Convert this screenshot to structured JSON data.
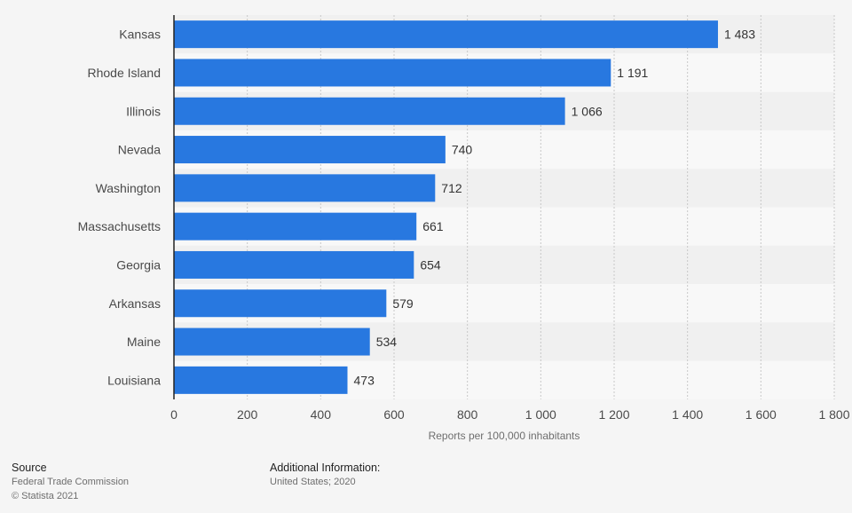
{
  "colors": {
    "bar": "#2878e0",
    "band_dark": "#f0f0f0",
    "band_light": "#f8f8f8",
    "grid": "#c8c8c8",
    "axis": "#222222",
    "label": "#4a4a4a",
    "value": "#333333"
  },
  "chart_data": {
    "type": "bar",
    "orientation": "horizontal",
    "categories": [
      "Kansas",
      "Rhode Island",
      "Illinois",
      "Nevada",
      "Washington",
      "Massachusetts",
      "Georgia",
      "Arkansas",
      "Maine",
      "Louisiana"
    ],
    "values": [
      1483,
      1191,
      1066,
      740,
      712,
      661,
      654,
      579,
      534,
      473
    ],
    "value_labels": [
      "1 483",
      "1 191",
      "1 066",
      "740",
      "712",
      "661",
      "654",
      "579",
      "534",
      "473"
    ],
    "x_ticks": [
      0,
      200,
      400,
      600,
      800,
      1000,
      1200,
      1400,
      1600,
      1800
    ],
    "x_tick_labels": [
      "0",
      "200",
      "400",
      "600",
      "800",
      "1 000",
      "1 200",
      "1 400",
      "1 600",
      "1 800"
    ],
    "xlim": [
      0,
      1800
    ],
    "xlabel": "Reports per 100,000 inhabitants",
    "ylabel": "",
    "title": "",
    "grid": true
  },
  "footer": {
    "source_heading": "Source",
    "source_line1": "Federal Trade Commission",
    "source_line2": "© Statista 2021",
    "info_heading": "Additional Information:",
    "info_line1": "United States; 2020"
  }
}
